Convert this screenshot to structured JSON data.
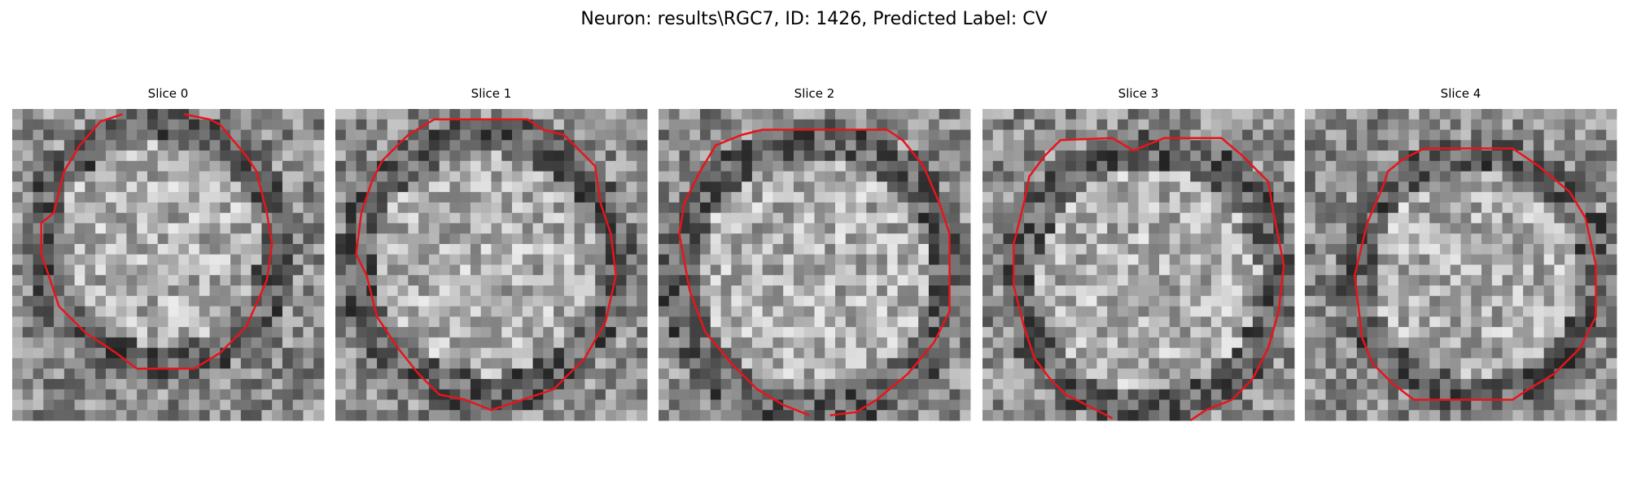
{
  "title": "Neuron: results\\RGC7, ID: 1426, Predicted Label: CV",
  "panels": [
    {
      "title": "Slice 0"
    },
    {
      "title": "Slice 1"
    },
    {
      "title": "Slice 2"
    },
    {
      "title": "Slice 3"
    },
    {
      "title": "Slice 4"
    }
  ]
}
